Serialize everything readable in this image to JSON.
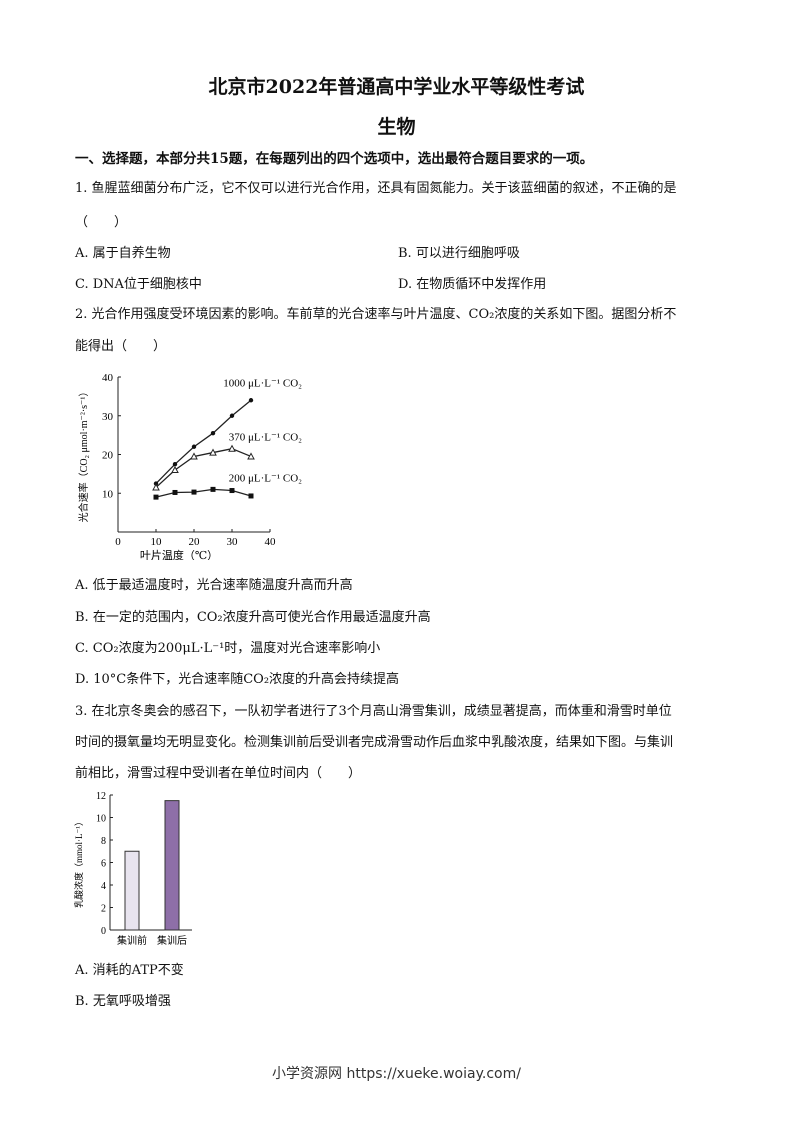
{
  "title": "北京市2022年普通高中学业水平等级性考试",
  "subject": "生物",
  "section": "一、选择题，本部分共15题，在每题列出的四个选项中，选出最符合题目要求的一项。",
  "q1": {
    "stem": "1. 鱼腥蓝细菌分布广泛，它不仅可以进行光合作用，还具有固氮能力。关于该蓝细菌的叙述，不正确的是",
    "blank": "（　　）",
    "options": [
      "A. 属于自养生物",
      "B. 可以进行细胞呼吸",
      "C. DNA位于细胞核中",
      "D. 在物质循环中发挥作用"
    ]
  },
  "q2": {
    "stem1": "2. 光合作用强度受环境因素的影响。车前草的光合速率与叶片温度、CO₂浓度的关系如下图。据图分析不",
    "stem2": "能得出（　　）",
    "options": [
      "A. 低于最适温度时，光合速率随温度升高而升高",
      "B. 在一定的范围内，CO₂浓度升高可使光合作用最适温度升高",
      "C. CO₂浓度为200μL·L⁻¹时，温度对光合速率影响小",
      "D. 10°C条件下，光合速率随CO₂浓度的升高会持续提高"
    ]
  },
  "q3": {
    "stem1": "3. 在北京冬奥会的感召下，一队初学者进行了3个月高山滑雪集训，成绩显著提高，而体重和滑雪时单位",
    "stem2": "时间的摄氧量均无明显变化。检测集训前后受训者完成滑雪动作后血浆中乳酸浓度，结果如下图。与集训",
    "stem3": "前相比，滑雪过程中受训者在单位时间内（　　）",
    "options": [
      "A. 消耗的ATP不变",
      "B. 无氧呼吸增强"
    ]
  },
  "chart_data": [
    {
      "type": "line",
      "xlabel": "叶片温度（℃）",
      "ylabel": "光合速率（CO₂ μmol·m⁻²·s⁻¹）",
      "xlim": [
        0,
        40
      ],
      "ylim": [
        0,
        40
      ],
      "xticks": [
        "0",
        "10",
        "20",
        "30",
        "40"
      ],
      "yticks": [
        "10",
        "20",
        "30",
        "40"
      ],
      "x": [
        10,
        15,
        20,
        25,
        30,
        35
      ],
      "series": [
        {
          "name": "1000 μL·L⁻¹ CO₂",
          "marker": "filled-circle",
          "values": [
            12.5,
            17.5,
            22,
            25.5,
            30,
            34
          ]
        },
        {
          "name": "370 μL·L⁻¹ CO₂",
          "marker": "open-triangle",
          "values": [
            11.5,
            16,
            19.5,
            20.5,
            21.5,
            19.5
          ]
        },
        {
          "name": "200 μL·L⁻¹ CO₂",
          "marker": "filled-square",
          "values": [
            9,
            10.2,
            10.3,
            11,
            10.7,
            9.3
          ]
        }
      ]
    },
    {
      "type": "bar",
      "ylabel": "乳酸浓度（mmol·L⁻¹）",
      "ylim": [
        0,
        12
      ],
      "yticks": [
        "0",
        "2",
        "4",
        "6",
        "8",
        "10",
        "12"
      ],
      "categories": [
        "集训前",
        "集训后"
      ],
      "values": [
        7,
        11.5
      ],
      "colors": [
        "#e8e4ef",
        "#8e6fa8"
      ]
    }
  ],
  "footer": "小学资源网 https://xueke.woiay.com/"
}
